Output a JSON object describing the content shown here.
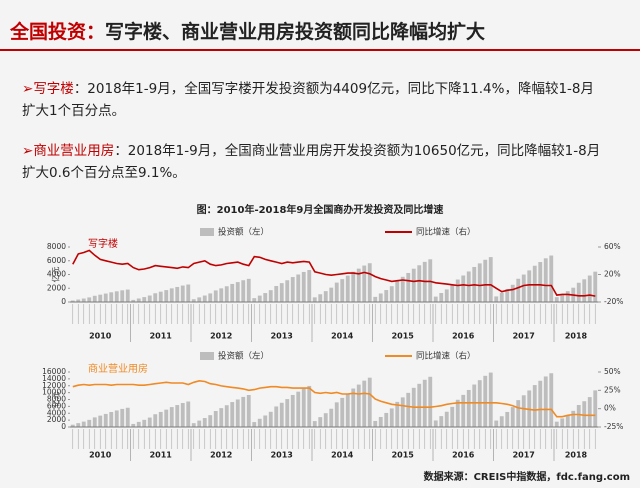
{
  "slide": {
    "title_prefix": "全国投资：",
    "title": "写字楼、商业营业用房投资额同比降幅均扩大",
    "bullets": [
      {
        "label": "写字楼",
        "text": "：2018年1-9月，全国写字楼开发投资额为4409亿元，同比下降11.4%，降幅较1-8月扩大1个百分点。"
      },
      {
        "label": "商业营业用房",
        "text": "：2018年1-9月，全国商业营业用房开发投资额为10650亿元，同比降幅较1-8月扩大0.6个百分点至9.1%。"
      }
    ],
    "figure_title": "图：2010年-2018年9月全国商办开发投资及同比增速",
    "source": "数据来源：CREIS中指数据，fdc.fang.com"
  },
  "chart_data": [
    {
      "type": "bar_line",
      "label": "写字楼",
      "ylabel": "亿元",
      "year_labels": [
        "2010",
        "2011",
        "2012",
        "2013",
        "2014",
        "2015",
        "2016",
        "2017",
        "2018"
      ],
      "ylim": [
        0,
        8000
      ],
      "yticks": [
        0,
        2000,
        4000,
        6000,
        8000
      ],
      "y2lim": [
        -20,
        60
      ],
      "y2ticks": [
        {
          "value": -20,
          "label": "-20%"
        },
        {
          "value": 20,
          "label": "20%"
        },
        {
          "value": 60,
          "label": "60%"
        }
      ],
      "series": [
        {
          "name": "投资额（左）",
          "color": "#bdbdbd",
          "values": [
            217,
            361,
            506,
            669,
            904,
            1066,
            1229,
            1409,
            1554,
            1699,
            1807,
            305,
            509,
            712,
            941,
            1272,
            1501,
            1730,
            1984,
            2188,
            2391,
            2544,
            404,
            673,
            943,
            1246,
            1684,
            1987,
            2290,
            2626,
            2896,
            3165,
            3367,
            558,
            930,
            1303,
            1721,
            2326,
            2745,
            3163,
            3629,
            4001,
            4373,
            4652,
            677,
            1128,
            1579,
            2087,
            2821,
            3328,
            3836,
            4400,
            4851,
            5303,
            5641,
            745,
            1242,
            1739,
            2298,
            3105,
            3664,
            4223,
            4844,
            5341,
            5837,
            6210,
            784,
            1307,
            1829,
            2417,
            3267,
            3854,
            4442,
            5096,
            5618,
            6141,
            6533,
            811,
            1352,
            1893,
            2502,
            3381,
            3989,
            4597,
            5274,
            5814,
            6355,
            6761,
            700,
            1150,
            1580,
            2080,
            2800,
            3300,
            3850,
            4409
          ]
        },
        {
          "name": "同比增速（右）",
          "color": "#c00000",
          "axis": "y2",
          "values": [
            35,
            50,
            52,
            55,
            48,
            42,
            40,
            38,
            36,
            35,
            36,
            30,
            27,
            28,
            30,
            33,
            32,
            31,
            30,
            29,
            31,
            30,
            36,
            38,
            40,
            35,
            33,
            34,
            36,
            37,
            38,
            35,
            33,
            46,
            45,
            42,
            40,
            38,
            36,
            38,
            37,
            38,
            39,
            38,
            24,
            22,
            20,
            19,
            20,
            21,
            22,
            22,
            21,
            23,
            21,
            17,
            14,
            12,
            10,
            11,
            12,
            11,
            10,
            11,
            10,
            10,
            8,
            7,
            6,
            5,
            4,
            5,
            4,
            5,
            4,
            5,
            5,
            0,
            -5,
            -3,
            -2,
            1,
            4,
            5,
            5,
            5,
            4,
            4,
            -10,
            -9,
            -9,
            -10,
            -11,
            -11,
            -10,
            -11.4
          ]
        }
      ]
    },
    {
      "type": "bar_line",
      "label": "商业营业用房",
      "ylabel": "亿元",
      "year_labels": [
        "2010",
        "2011",
        "2012",
        "2013",
        "2014",
        "2015",
        "2016",
        "2017",
        "2018"
      ],
      "ylim": [
        0,
        16000
      ],
      "yticks": [
        0,
        2000,
        4000,
        6000,
        8000,
        10000,
        12000,
        14000,
        16000
      ],
      "y2lim": [
        -25,
        50
      ],
      "y2ticks": [
        {
          "value": -25,
          "label": "-25%"
        },
        {
          "value": 0,
          "label": "0%"
        },
        {
          "value": 25,
          "label": "25%"
        },
        {
          "value": 50,
          "label": "50%"
        }
      ],
      "series": [
        {
          "name": "投资额（左）",
          "color": "#bdbdbd",
          "values": [
            672,
            1120,
            1568,
            2072,
            2800,
            3303,
            3807,
            4367,
            4815,
            5263,
            5599,
            891,
            1485,
            2079,
            2747,
            3712,
            4380,
            5048,
            5791,
            6385,
            6979,
            7424,
            1117,
            1862,
            2607,
            3445,
            4656,
            5494,
            6332,
            7263,
            8008,
            8753,
            9312,
            1433,
            2389,
            3345,
            4420,
            5973,
            7048,
            8123,
            9317,
            10273,
            11228,
            11945,
            1722,
            2869,
            4017,
            5308,
            7173,
            8464,
            9755,
            11190,
            12338,
            13485,
            14346,
            1753,
            2921,
            4090,
            5405,
            7304,
            8618,
            9933,
            11393,
            12562,
            13731,
            14607,
            1901,
            3168,
            4435,
            5860,
            7919,
            9344,
            10770,
            12354,
            13621,
            14888,
            15838,
            1877,
            3128,
            4379,
            5787,
            7820,
            9228,
            10635,
            12199,
            13450,
            14702,
            15640,
            1550,
            2500,
            3500,
            4700,
            6400,
            7500,
            8700,
            10650
          ]
        },
        {
          "name": "同比增速（右）",
          "color": "#f08a24",
          "axis": "y2",
          "values": [
            30,
            32,
            33,
            32,
            33,
            33,
            33,
            32,
            33,
            33,
            33,
            33,
            32,
            32,
            33,
            34,
            35,
            36,
            35,
            35,
            35,
            33,
            36,
            38,
            37,
            34,
            33,
            31,
            30,
            29,
            28,
            27,
            25,
            26,
            28,
            29,
            30,
            30,
            29,
            29,
            28,
            28,
            28,
            28,
            22,
            21,
            22,
            21,
            22,
            20,
            20,
            21,
            20,
            21,
            20,
            13,
            10,
            8,
            6,
            5,
            4,
            3,
            2,
            2,
            2,
            2,
            3,
            4,
            6,
            7,
            8,
            8,
            8,
            8,
            8,
            8,
            8,
            8,
            7,
            6,
            4,
            1,
            0,
            -1,
            -2,
            -1,
            -1,
            -1,
            -11,
            -11,
            -9,
            -8,
            -8,
            -9,
            -9,
            -9.1
          ]
        }
      ]
    }
  ]
}
